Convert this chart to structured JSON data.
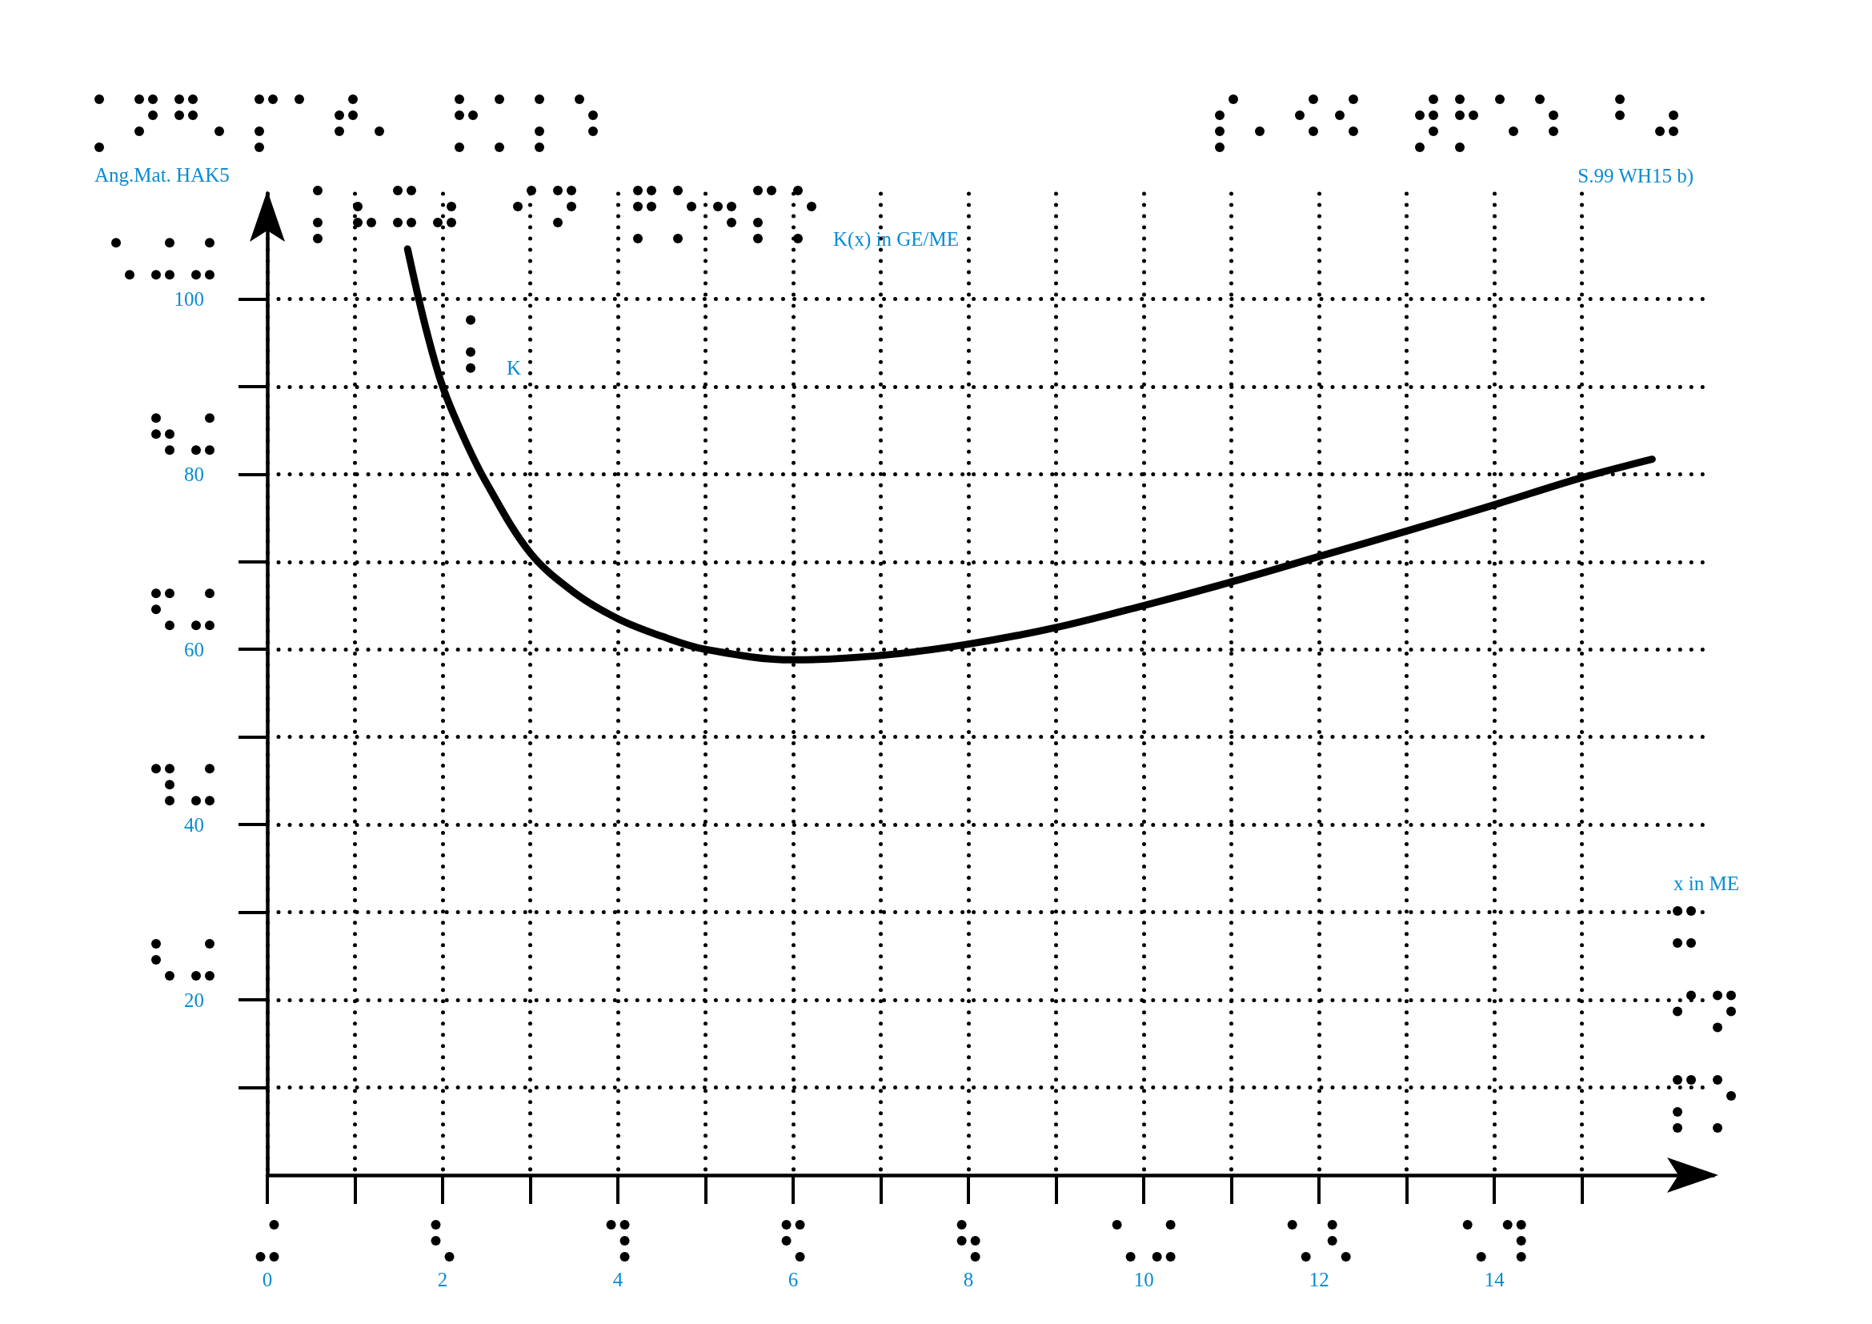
{
  "chart_data": {
    "type": "line",
    "title": "Ang.Mat. HAK5",
    "ylabel": "K(x) in GE/ME",
    "xlabel": "x in ME",
    "annotations": [
      "S.99 WH15 b)"
    ],
    "series": [
      {
        "name": "K",
        "color": "#000000",
        "x": [
          1.6,
          1.8,
          2,
          2.25,
          2.5,
          3,
          3.5,
          4,
          4.5,
          5,
          6,
          7,
          8,
          9,
          10,
          11,
          12,
          13,
          14,
          15,
          15.8
        ],
        "values": [
          105.7,
          97,
          90,
          84,
          79,
          71,
          66.5,
          63.5,
          61.5,
          60,
          58.8,
          59.3,
          60.6,
          62.5,
          65,
          67.7,
          70.6,
          73.5,
          76.5,
          79.6,
          81.7
        ]
      }
    ],
    "xlim": [
      0,
      16.5
    ],
    "ylim": [
      0,
      112
    ],
    "xticks": [
      0,
      {
        "value": 1,
        "label": null
      },
      2,
      {
        "value": 3,
        "label": null
      },
      4,
      {
        "value": 5,
        "label": null
      },
      6,
      {
        "value": 7,
        "label": null
      },
      8,
      {
        "value": 9,
        "label": null
      },
      10,
      {
        "value": 11,
        "label": null
      },
      12,
      {
        "value": 13,
        "label": null
      },
      14,
      {
        "value": 15,
        "label": null
      }
    ],
    "yticks": [
      {
        "value": 10,
        "label": null
      },
      20,
      {
        "value": 30,
        "label": null
      },
      40,
      {
        "value": 50,
        "label": null
      },
      60,
      {
        "value": 70,
        "label": null
      },
      80,
      {
        "value": 90,
        "label": null
      },
      100
    ],
    "grid": true,
    "marker": "none",
    "line_style": "solid"
  }
}
